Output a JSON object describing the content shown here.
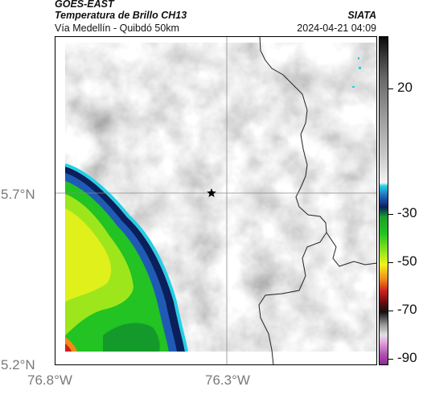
{
  "header": {
    "satellite": "GOES-EAST",
    "product": "Temperatura de Brillo CH13",
    "route": "Vía Medellín - Quibdó 50km",
    "brand": "SIATA",
    "datetime": "2024-04-21 04:09"
  },
  "map": {
    "lat_labels": [
      "5.7°N",
      "5.2°N"
    ],
    "lon_labels": [
      "76.8°W",
      "76.3°W"
    ],
    "marker": "star-marker"
  },
  "colorbar": {
    "tick_labels": [
      "20",
      "-30",
      "-50",
      "-70",
      "-90"
    ],
    "colors": {
      "warm_gray_light": "#f2f2f2",
      "gray_mid": "#9a9a9a",
      "dark_top": "#111111",
      "cyan": "#22d0e6",
      "blue": "#1f5bb5",
      "navy": "#0b1f5a",
      "green": "#22c322",
      "lime": "#c5ee1a",
      "yellow": "#f2f21a",
      "orange": "#f08a1a",
      "red": "#d0201a",
      "magenta": "#b04fb0"
    }
  }
}
